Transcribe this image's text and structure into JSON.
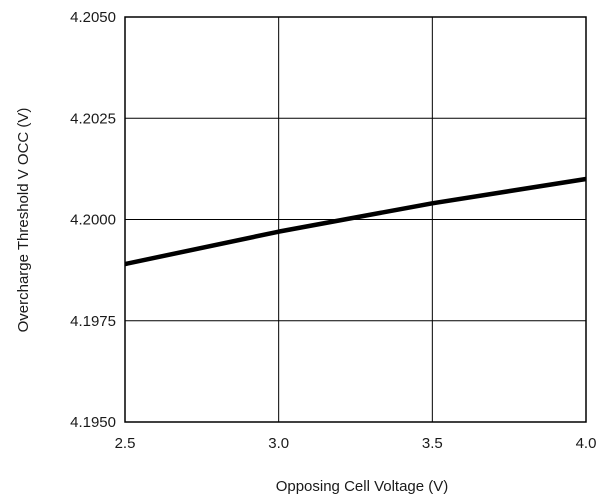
{
  "chart_data": {
    "type": "line",
    "title": "",
    "xlabel": "Opposing Cell Voltage (V)",
    "ylabel": "Overcharge Threshold V OCC (V)",
    "xlim": [
      2.5,
      4.0
    ],
    "ylim": [
      4.195,
      4.205
    ],
    "x_ticks": [
      2.5,
      3.0,
      3.5,
      4.0
    ],
    "x_tick_labels": [
      "2.5",
      "3.0",
      "3.5",
      "4.0"
    ],
    "y_ticks": [
      4.195,
      4.1975,
      4.2,
      4.2025,
      4.205
    ],
    "y_tick_labels": [
      "4.1950",
      "4.1975",
      "4.2000",
      "4.2025",
      "4.2050"
    ],
    "grid": true,
    "legend": "none",
    "series": [
      {
        "color": "#000000",
        "x": [
          2.5,
          3.0,
          3.5,
          4.0
        ],
        "y": [
          4.1989,
          4.1997,
          4.2004,
          4.201
        ]
      }
    ]
  }
}
